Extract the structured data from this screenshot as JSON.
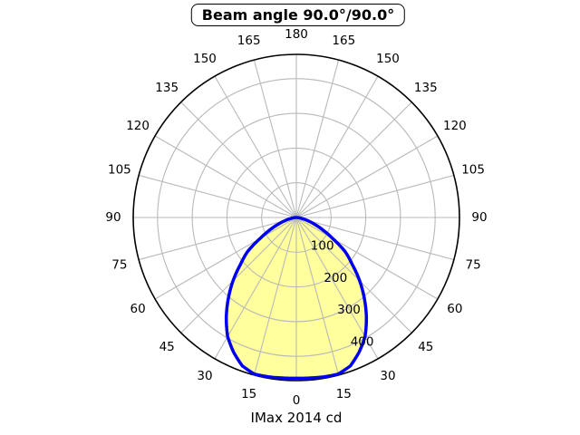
{
  "title": "Beam angle 90.0°/90.0°",
  "footer": "IMax 2014 cd",
  "chart_data": {
    "type": "area",
    "projection": "polar",
    "description": "photometric luminous intensity distribution, 0° at nadir (bottom), mirrored left/right",
    "title": "Beam angle 90.0°/90.0°",
    "units": "cd",
    "imax_cd": 2014,
    "imax_label": "IMax 2014 cd",
    "beam_angle_label": "90.0°/90.0°",
    "r_max": 470,
    "r_label_angle_deg": 22.5,
    "angle_tick_step_deg": 15,
    "grid": true,
    "r_ticks": [
      {
        "value": 100,
        "label": "100"
      },
      {
        "value": 200,
        "label": "200"
      },
      {
        "value": 300,
        "label": "300"
      },
      {
        "value": 400,
        "label": "400"
      }
    ],
    "angle_ticks": [
      {
        "pos": 180,
        "label": "180"
      },
      {
        "pos": -165,
        "label": "165"
      },
      {
        "pos": 165,
        "label": "165"
      },
      {
        "pos": -150,
        "label": "150"
      },
      {
        "pos": 150,
        "label": "150"
      },
      {
        "pos": -135,
        "label": "135"
      },
      {
        "pos": 135,
        "label": "135"
      },
      {
        "pos": -120,
        "label": "120"
      },
      {
        "pos": 120,
        "label": "120"
      },
      {
        "pos": -105,
        "label": "105"
      },
      {
        "pos": 105,
        "label": "105"
      },
      {
        "pos": -90,
        "label": "90"
      },
      {
        "pos": 90,
        "label": "90"
      },
      {
        "pos": -75,
        "label": "75"
      },
      {
        "pos": 75,
        "label": "75"
      },
      {
        "pos": -60,
        "label": "60"
      },
      {
        "pos": 60,
        "label": "60"
      },
      {
        "pos": -45,
        "label": "45"
      },
      {
        "pos": 45,
        "label": "45"
      },
      {
        "pos": -30,
        "label": "30"
      },
      {
        "pos": 30,
        "label": "30"
      },
      {
        "pos": -15,
        "label": "15"
      },
      {
        "pos": 15,
        "label": "15"
      },
      {
        "pos": 0,
        "label": "0"
      }
    ],
    "series": [
      {
        "name": "luminous-intensity",
        "symmetric": true,
        "angles_deg": [
          0,
          5,
          10,
          15,
          20,
          25,
          30,
          35,
          40,
          45,
          50,
          55,
          60,
          65,
          70,
          75,
          80,
          85,
          90
        ],
        "values_cd": [
          463,
          464,
          466,
          467,
          455,
          428,
          396,
          352,
          305,
          258,
          210,
          172,
          120,
          83,
          54,
          32,
          16,
          6,
          0
        ]
      }
    ],
    "colors": {
      "curve": "#0000ee",
      "fill": "#ffff9e",
      "grid": "#b9b9b9",
      "axis": "#000000",
      "text": "#000000",
      "background": "#ffffff"
    }
  }
}
